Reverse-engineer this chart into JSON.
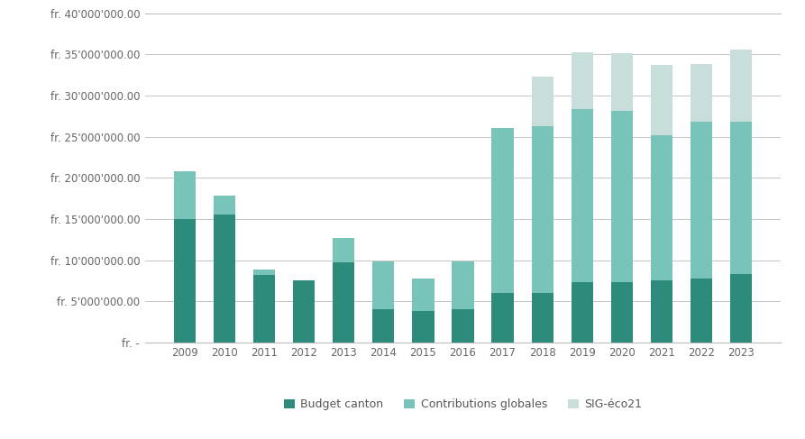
{
  "years": [
    2009,
    2010,
    2011,
    2012,
    2013,
    2014,
    2015,
    2016,
    2017,
    2018,
    2019,
    2020,
    2021,
    2022,
    2023
  ],
  "budget_canton": [
    15000000,
    15500000,
    8200000,
    7500000,
    9700000,
    4000000,
    3800000,
    4000000,
    6000000,
    6000000,
    7300000,
    7300000,
    7500000,
    7800000,
    8300000
  ],
  "contributions_globales": [
    5800000,
    2300000,
    700000,
    0,
    3000000,
    5800000,
    4000000,
    5800000,
    20000000,
    20300000,
    21000000,
    20800000,
    17700000,
    19000000,
    18500000
  ],
  "sig_eco21": [
    0,
    0,
    0,
    0,
    0,
    0,
    0,
    0,
    0,
    6000000,
    7000000,
    7000000,
    8500000,
    7000000,
    8800000
  ],
  "color_budget": "#2d8b7b",
  "color_contributions": "#78c4b8",
  "color_sig": "#c8deda",
  "ylim": [
    0,
    40000000
  ],
  "yticks": [
    0,
    5000000,
    10000000,
    15000000,
    20000000,
    25000000,
    30000000,
    35000000,
    40000000
  ],
  "legend_labels": [
    "Budget canton",
    "Contributions globales",
    "SIG-éco21"
  ],
  "background_color": "#ffffff",
  "grid_color": "#bbbbbb",
  "bar_width": 0.55
}
